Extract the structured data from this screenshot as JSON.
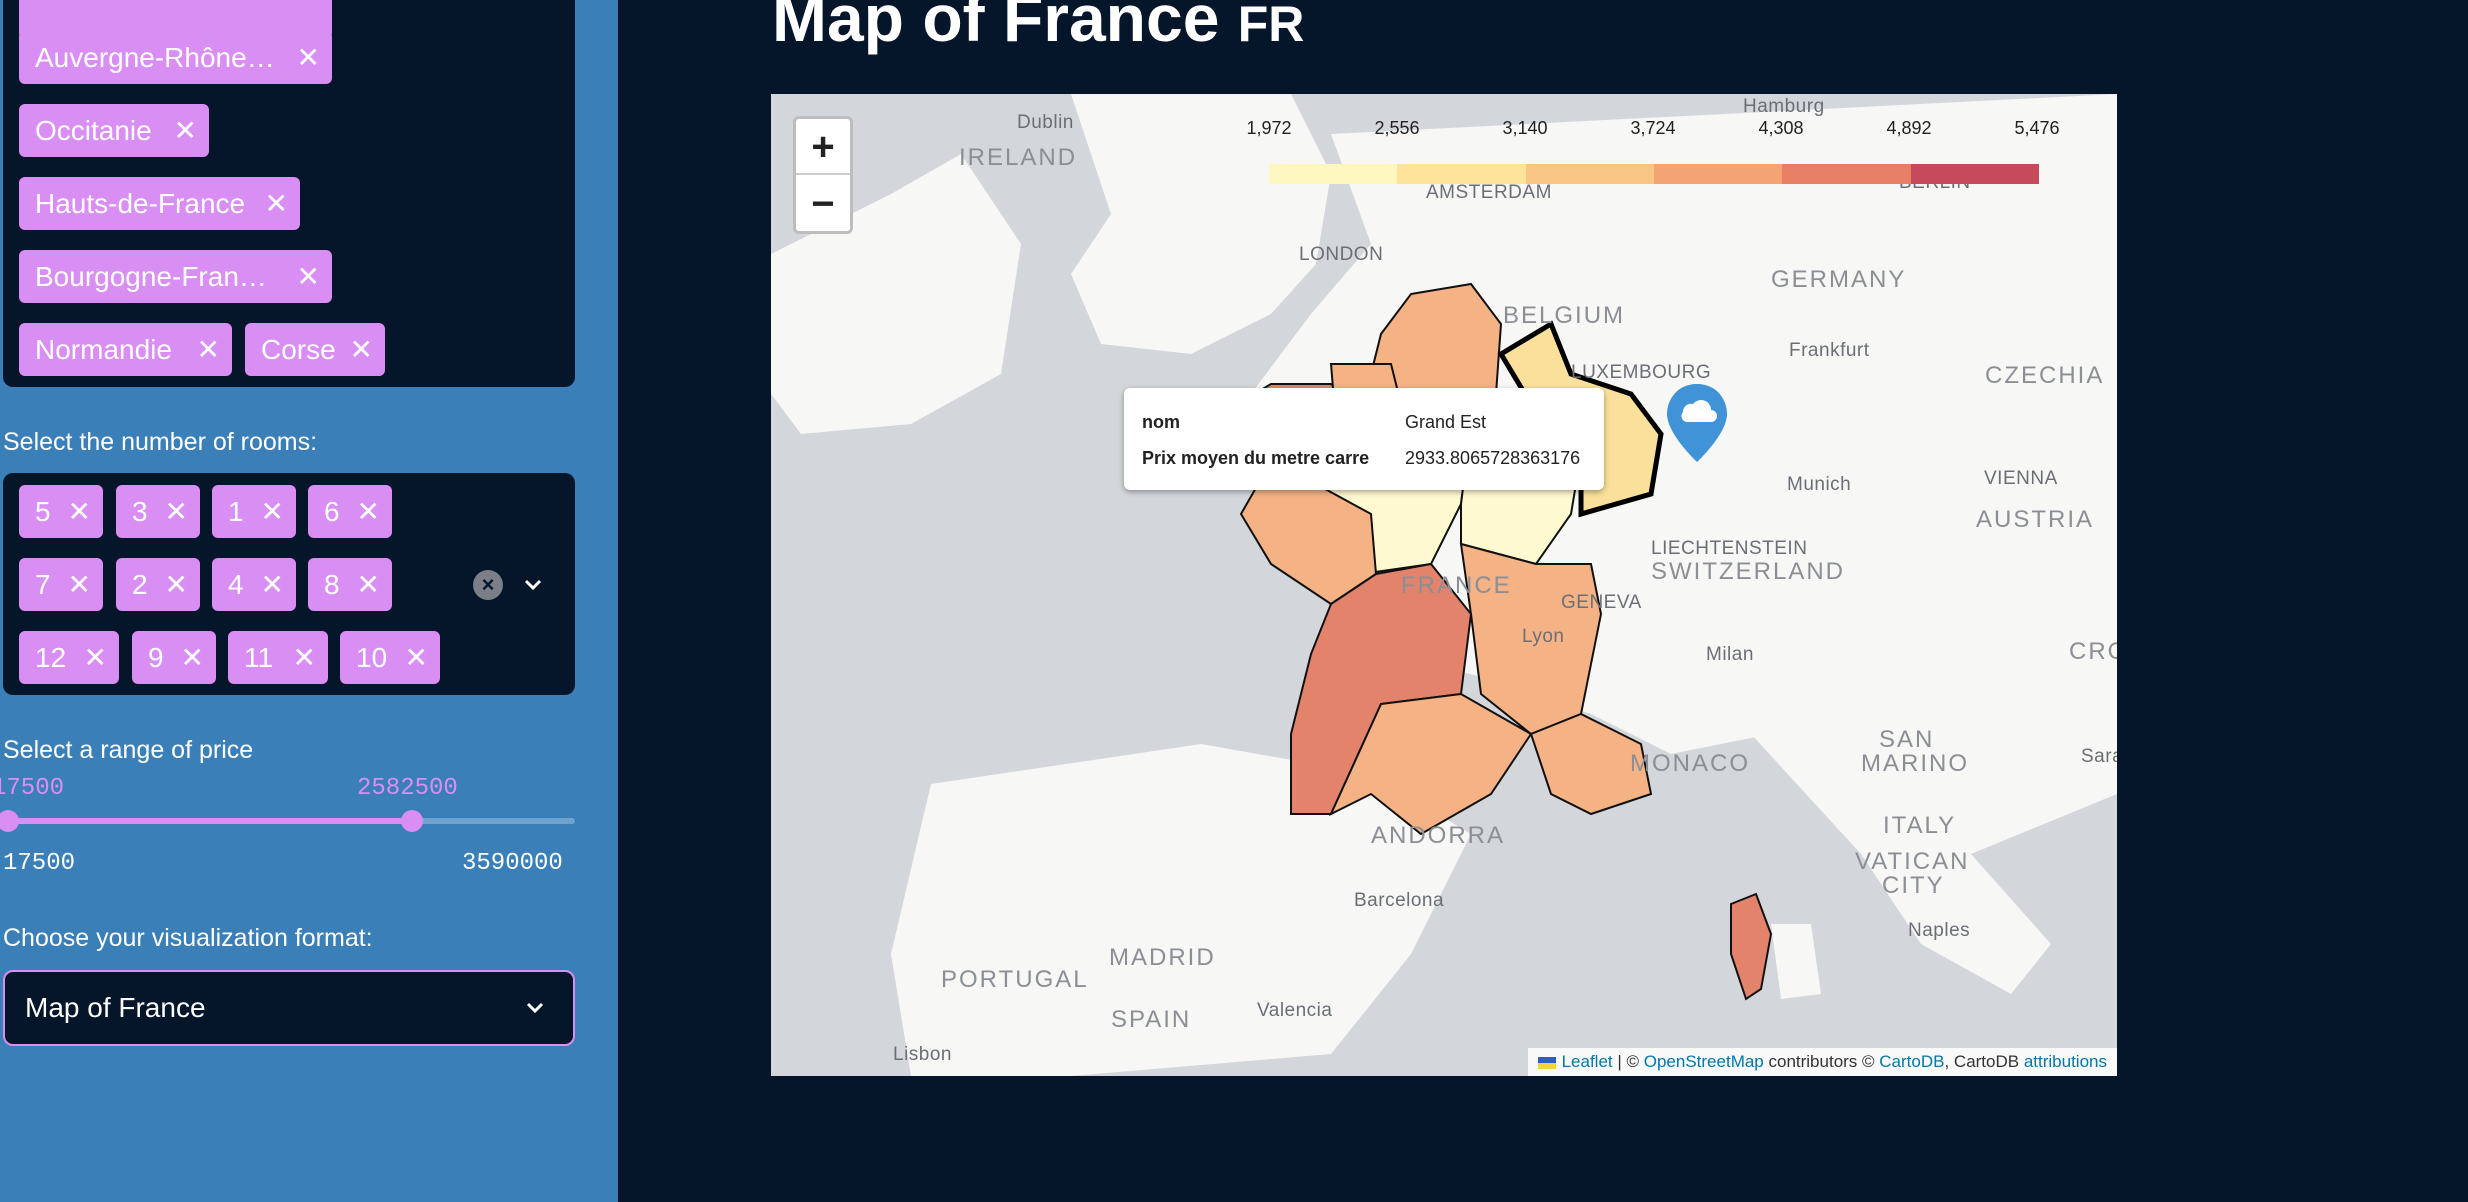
{
  "sidebar": {
    "regions_chips": [
      {
        "label": "Auvergne-Rhône…"
      },
      {
        "label": "Occitanie"
      },
      {
        "label": "Hauts-de-France"
      },
      {
        "label": "Bourgogne-Fran…"
      },
      {
        "label": "Normandie"
      },
      {
        "label": "Corse"
      }
    ],
    "rooms_label": "Select the number of rooms:",
    "rooms_chips": [
      "5",
      "3",
      "1",
      "6",
      "7",
      "2",
      "4",
      "8",
      "12",
      "9",
      "11",
      "10"
    ],
    "price_label": "Select a range of price",
    "price_slider": {
      "low_value": "17500",
      "high_value": "2582500",
      "min_label": "17500",
      "max_label": "3590000",
      "high_fraction": 0.7148
    },
    "format_label": "Choose your visualization format:",
    "format_select": {
      "value": "Map of France"
    }
  },
  "main": {
    "title": "Map of France",
    "title_flag": "FR"
  },
  "map": {
    "zoom_in": "+",
    "zoom_out": "−",
    "legend": {
      "ticks": [
        "1,972",
        "2,556",
        "3,140",
        "3,724",
        "4,308",
        "4,892",
        "5,476"
      ],
      "colors": [
        "#fff6c0",
        "#fde49a",
        "#f9c584",
        "#f4a472",
        "#e77e66",
        "#c74a5c"
      ]
    },
    "tooltip": {
      "row1_label": "nom",
      "row1_value": "Grand Est",
      "row2_label": "Prix moyen du metre carre",
      "row2_value": "2933.8065728363176"
    },
    "places": [
      "Dublin",
      "IRELAND",
      "Hamburg",
      "AMSTERDAM",
      "BERLIN",
      "LONDON",
      "GERMANY",
      "BELGIUM",
      "Frankfurt",
      "LUXEMBOURG",
      "CZECHIA",
      "Munich",
      "VIENNA",
      "AUSTRIA",
      "LIECHTENSTEIN",
      "SWITZERLAND",
      "FRANCE",
      "Lyon",
      "GENEVA",
      "Milan",
      "CROA",
      "SAN",
      "MARINO",
      "MONACO",
      "ITALY",
      "VATICAN",
      "CITY",
      "Sara",
      "ANDORRA",
      "Barcelona",
      "PORTUGAL",
      "MADRID",
      "SPAIN",
      "Valencia",
      "Naples",
      "Lisbon"
    ],
    "attribution": {
      "leaflet": "Leaflet",
      "sep1": " | © ",
      "osm": "OpenStreetMap",
      "mid": " contributors © ",
      "cartodb": "CartoDB",
      "mid2": ", CartoDB ",
      "attributions": "attributions"
    },
    "colors": {
      "sea": "#d3d6da",
      "land": "#f7f7f5",
      "outline": "#111111"
    }
  }
}
